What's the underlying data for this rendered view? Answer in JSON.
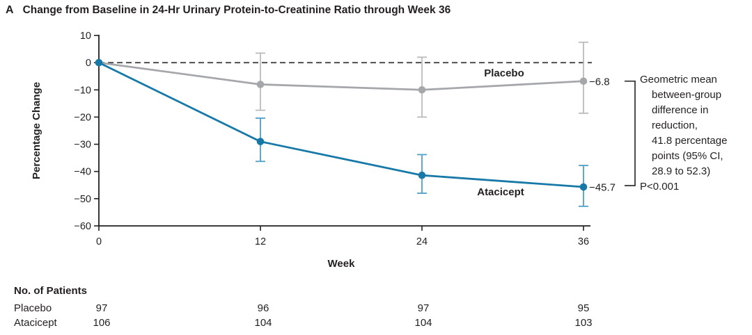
{
  "title": {
    "panel": "A",
    "text": "Change from Baseline in 24-Hr Urinary Protein-to-Creatinine Ratio through Week 36"
  },
  "chart_data": {
    "type": "line",
    "x": [
      0,
      12,
      24,
      36
    ],
    "xlabel": "Week",
    "ylabel": "Percentage Change",
    "ylim": [
      -60,
      10
    ],
    "yticks": [
      10,
      0,
      -10,
      -20,
      -30,
      -40,
      -50,
      -60
    ],
    "ytick_labels": [
      "10",
      "0",
      "−10",
      "−20",
      "−30",
      "−40",
      "−50",
      "−60"
    ],
    "grid": false,
    "zero_line_style": "dashed",
    "colors": {
      "atacicept": "#1779A8",
      "atacicept_error": "#4DA0C7",
      "placebo": "#A5A7AA",
      "placebo_error": "#B9BBBE",
      "axis": "#231F20",
      "zero_line": "#4D4E50",
      "placebo_text": "#97999C"
    },
    "series": [
      {
        "name": "Placebo",
        "color": "#A5A7AA",
        "error_color": "#B9BBBE",
        "label_color": "#97999C",
        "end_label": "−6.8",
        "points": [
          {
            "x": 0,
            "y": 0
          },
          {
            "x": 12,
            "y": -8,
            "ci": [
              -17.5,
              3.5
            ]
          },
          {
            "x": 24,
            "y": -10,
            "ci": [
              -20,
              2
            ]
          },
          {
            "x": 36,
            "y": -6.8,
            "ci": [
              -18.6,
              7.5
            ]
          }
        ]
      },
      {
        "name": "Atacicept",
        "color": "#1779A8",
        "error_color": "#4DA0C7",
        "label_color": "#1779A8",
        "end_label": "−45.7",
        "points": [
          {
            "x": 0,
            "y": 0
          },
          {
            "x": 12,
            "y": -29,
            "ci": [
              -36.3,
              -20.4
            ]
          },
          {
            "x": 24,
            "y": -41.4,
            "ci": [
              -48,
              -33.8
            ]
          },
          {
            "x": 36,
            "y": -45.7,
            "ci": [
              -52.8,
              -37.8
            ]
          }
        ]
      }
    ]
  },
  "annotation": {
    "lines": [
      "Geometric mean",
      "between-group",
      "difference in",
      "reduction,",
      "41.8 percentage",
      "points (95% CI,",
      "28.9 to 52.3)"
    ],
    "p_value": "P<0.001"
  },
  "patients_table": {
    "header": "No. of Patients",
    "rows": [
      {
        "label": "Placebo",
        "values": [
          "97",
          "96",
          "97",
          "95"
        ]
      },
      {
        "label": "Atacicept",
        "values": [
          "106",
          "104",
          "104",
          "103"
        ]
      }
    ]
  }
}
